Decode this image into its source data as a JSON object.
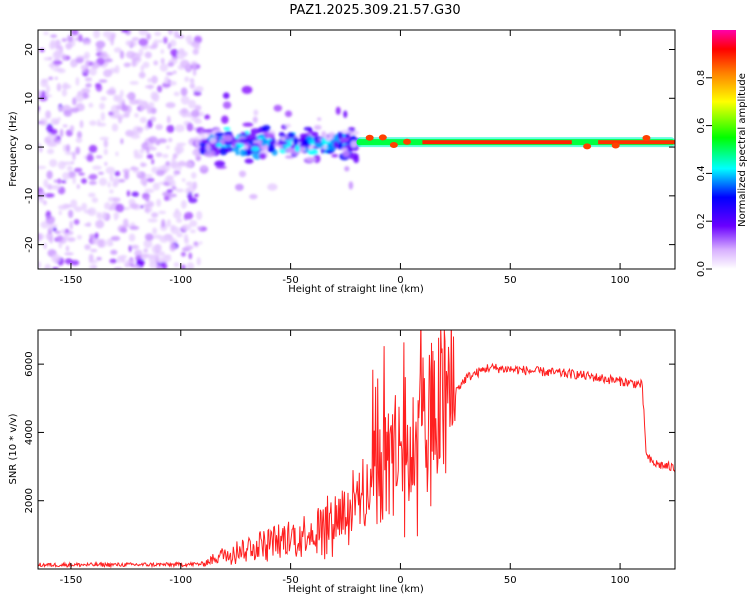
{
  "title": "PAZ1.2025.309.21.57.G30",
  "chart_data": [
    {
      "type": "heatmap",
      "name": "spectrogram",
      "xlabel": "Height of straight line (km)",
      "ylabel": "Frequency (Hz)",
      "xlim": [
        -165,
        125
      ],
      "ylim": [
        -25,
        24
      ],
      "xticks": [
        -150,
        -100,
        -50,
        0,
        50,
        100
      ],
      "yticks": [
        20,
        10,
        0,
        -10,
        -20
      ],
      "colorbar": {
        "label": "Normalized spectral amplitude",
        "range": [
          0,
          1
        ],
        "ticks": [
          0.0,
          0.2,
          0.4,
          0.6,
          0.8
        ],
        "colors": [
          "#ffffff",
          "#6a00ff",
          "#0000ff",
          "#00ffff",
          "#00ff00",
          "#ffff00",
          "#ff8000",
          "#ff0000",
          "#ff00aa"
        ]
      },
      "regions": [
        {
          "x": [
            -165,
            -90
          ],
          "freq": [
            -25,
            24
          ],
          "amplitude": 0.1,
          "pattern": "scattered noise"
        },
        {
          "x": [
            -90,
            -20
          ],
          "freq": [
            -15,
            12
          ],
          "amplitude": 0.2,
          "pattern": "noisy signal"
        },
        {
          "x": [
            -20,
            125
          ],
          "freq_center": [
            2,
            1,
            1,
            1,
            1,
            1
          ],
          "amplitude": 0.9,
          "pattern": "narrow carrier line"
        }
      ]
    },
    {
      "type": "line",
      "name": "snr",
      "xlabel": "Height of straight line (km)",
      "ylabel": "SNR (10 * v/v)",
      "xlim": [
        -165,
        125
      ],
      "ylim": [
        0,
        7000
      ],
      "xticks": [
        -150,
        -100,
        -50,
        0,
        50,
        100
      ],
      "yticks": [
        2000,
        4000,
        6000
      ],
      "color": "#ff2020",
      "x": [
        -165,
        -100,
        -90,
        -80,
        -70,
        -60,
        -50,
        -40,
        -30,
        -20,
        -10,
        0,
        10,
        20,
        30,
        40,
        50,
        60,
        70,
        80,
        90,
        100,
        110,
        112,
        115,
        125
      ],
      "y": [
        120,
        130,
        150,
        450,
        650,
        800,
        950,
        1150,
        1500,
        2000,
        2800,
        3500,
        4200,
        4800,
        5600,
        5900,
        5850,
        5800,
        5750,
        5700,
        5600,
        5500,
        5400,
        3300,
        3100,
        2950
      ]
    }
  ]
}
